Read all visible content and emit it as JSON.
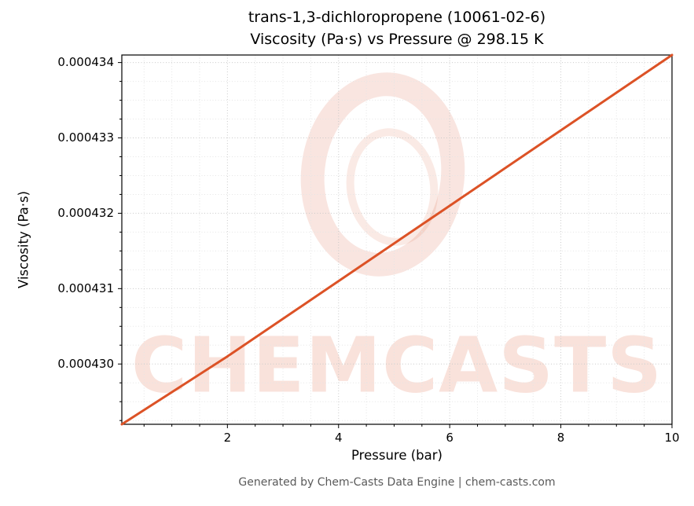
{
  "chart_data": {
    "type": "line",
    "title_line1": "trans-1,3-dichloropropene (10061-02-6)",
    "title_line2": "Viscosity (Pa·s) vs Pressure @ 298.15 K",
    "xlabel": "Pressure (bar)",
    "ylabel": "Viscosity (Pa·s)",
    "xlim": [
      0.1,
      10
    ],
    "ylim": [
      0.0004292,
      0.0004341
    ],
    "x_ticks": [
      2,
      4,
      6,
      8,
      10
    ],
    "x_tick_step": 2,
    "x_minor_step": 0.5,
    "y_ticks": [
      0.00043,
      0.000431,
      0.000432,
      0.000433,
      0.000434
    ],
    "y_tick_step": 1e-06,
    "y_minor_step": 2.5e-07,
    "y_tick_decimals": 6,
    "grid": true,
    "legend": false,
    "series": [
      {
        "name": "viscosity",
        "color": "#dc5226",
        "x": [
          0.1,
          2,
          4,
          6,
          8,
          10
        ],
        "y": [
          0.0004292,
          0.0004301,
          0.0004311,
          0.0004321,
          0.0004331,
          0.0004341
        ]
      }
    ]
  },
  "watermark": {
    "text": "CHEMCASTS",
    "color": "rgba(217,82,44,0.17)"
  },
  "footer": {
    "text": "Generated by Chem-Casts Data Engine | chem-casts.com"
  }
}
